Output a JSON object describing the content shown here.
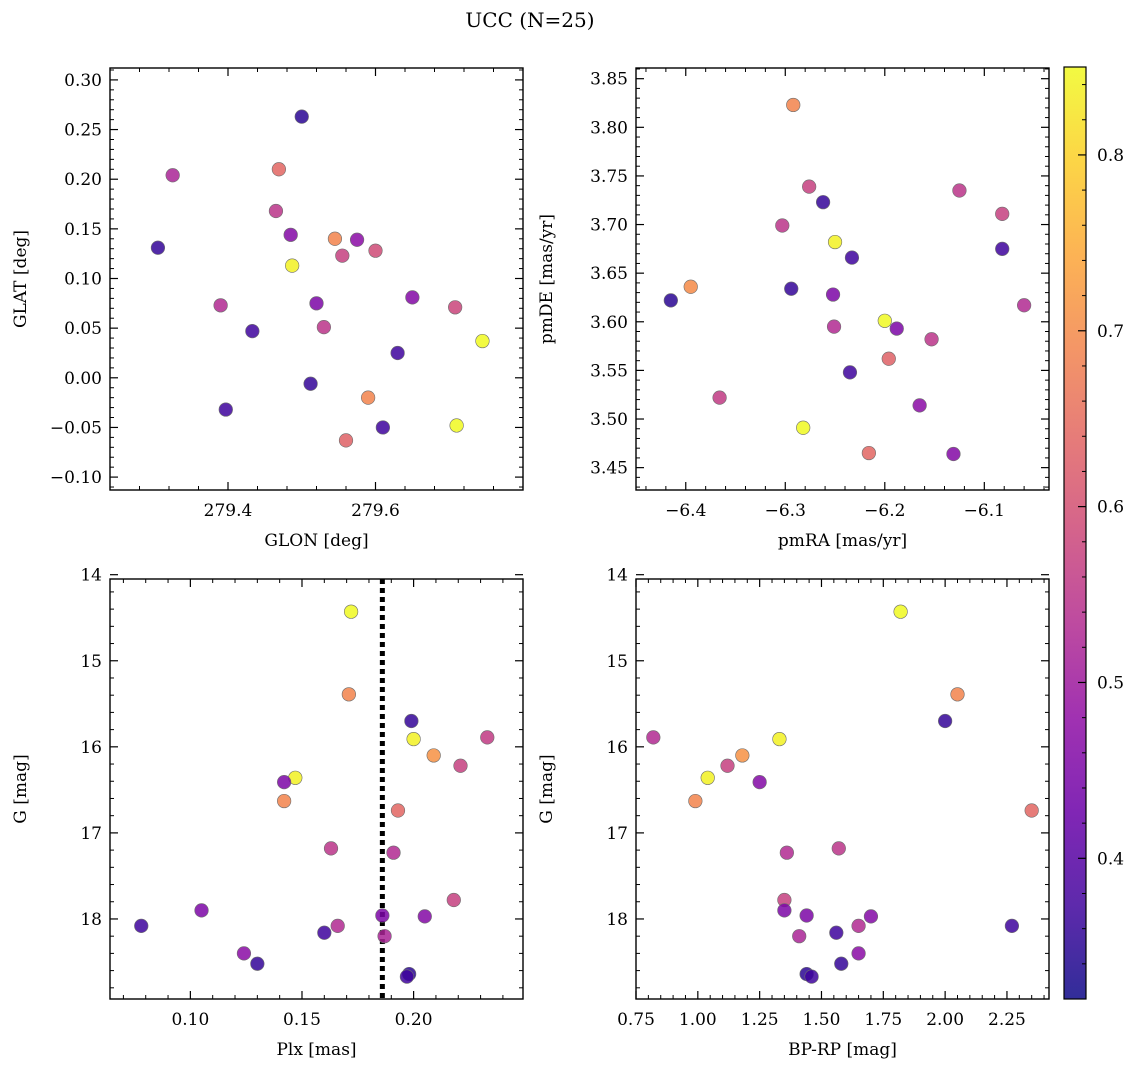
{
  "title": "UCC (N=25)",
  "colorbar": {
    "colormap": "plasma",
    "range": [
      0.32,
      0.85
    ],
    "ticks": [
      0.4,
      0.5,
      0.6,
      0.7,
      0.8
    ],
    "tick_labels": [
      "0.4",
      "0.5",
      "0.6",
      "0.7",
      "0.8"
    ]
  },
  "chart_data": [
    {
      "type": "scatter",
      "name": "sky",
      "xlabel": "GLON [deg]",
      "ylabel": "GLAT [deg]",
      "xlim": [
        279.24,
        279.8
      ],
      "ylim": [
        -0.113,
        0.312
      ],
      "xticks": [
        279.4,
        279.6
      ],
      "xtick_labels": [
        "279.4",
        "279.6"
      ],
      "yticks": [
        -0.1,
        -0.05,
        0.0,
        0.05,
        0.1,
        0.15,
        0.2,
        0.25,
        0.3
      ],
      "ytick_labels": [
        "−0.10",
        "−0.05",
        "0.00",
        "0.05",
        "0.10",
        "0.15",
        "0.20",
        "0.25",
        "0.30"
      ],
      "points": [
        {
          "x": 279.5,
          "y": 0.263,
          "c": 0.35
        },
        {
          "x": 279.325,
          "y": 0.204,
          "c": 0.52
        },
        {
          "x": 279.469,
          "y": 0.21,
          "c": 0.64
        },
        {
          "x": 279.465,
          "y": 0.168,
          "c": 0.55
        },
        {
          "x": 279.485,
          "y": 0.144,
          "c": 0.46
        },
        {
          "x": 279.305,
          "y": 0.131,
          "c": 0.36
        },
        {
          "x": 279.545,
          "y": 0.14,
          "c": 0.69
        },
        {
          "x": 279.575,
          "y": 0.139,
          "c": 0.47
        },
        {
          "x": 279.555,
          "y": 0.123,
          "c": 0.57
        },
        {
          "x": 279.6,
          "y": 0.128,
          "c": 0.59
        },
        {
          "x": 279.487,
          "y": 0.113,
          "c": 0.84
        },
        {
          "x": 279.39,
          "y": 0.073,
          "c": 0.53
        },
        {
          "x": 279.52,
          "y": 0.075,
          "c": 0.45
        },
        {
          "x": 279.65,
          "y": 0.081,
          "c": 0.46
        },
        {
          "x": 279.708,
          "y": 0.071,
          "c": 0.58
        },
        {
          "x": 279.433,
          "y": 0.047,
          "c": 0.37
        },
        {
          "x": 279.53,
          "y": 0.051,
          "c": 0.55
        },
        {
          "x": 279.63,
          "y": 0.025,
          "c": 0.37
        },
        {
          "x": 279.745,
          "y": 0.037,
          "c": 0.85
        },
        {
          "x": 279.512,
          "y": -0.006,
          "c": 0.36
        },
        {
          "x": 279.59,
          "y": -0.02,
          "c": 0.69
        },
        {
          "x": 279.397,
          "y": -0.032,
          "c": 0.37
        },
        {
          "x": 279.61,
          "y": -0.05,
          "c": 0.37
        },
        {
          "x": 279.71,
          "y": -0.048,
          "c": 0.85
        },
        {
          "x": 279.56,
          "y": -0.063,
          "c": 0.63
        }
      ]
    },
    {
      "type": "scatter",
      "name": "proper-motion",
      "xlabel": "pmRA [mas/yr]",
      "ylabel": "pmDE [mas/yr]",
      "xlim": [
        -6.45,
        -6.035
      ],
      "ylim": [
        3.427,
        3.861
      ],
      "xticks": [
        -6.4,
        -6.3,
        -6.2,
        -6.1
      ],
      "xtick_labels": [
        "−6.4",
        "−6.3",
        "−6.2",
        "−6.1"
      ],
      "yticks": [
        3.45,
        3.5,
        3.55,
        3.6,
        3.65,
        3.7,
        3.75,
        3.8,
        3.85
      ],
      "ytick_labels": [
        "3.45",
        "3.50",
        "3.55",
        "3.60",
        "3.65",
        "3.70",
        "3.75",
        "3.80",
        "3.85"
      ],
      "points": [
        {
          "x": -6.292,
          "y": 3.823,
          "c": 0.69
        },
        {
          "x": -6.276,
          "y": 3.739,
          "c": 0.57
        },
        {
          "x": -6.262,
          "y": 3.723,
          "c": 0.36
        },
        {
          "x": -6.303,
          "y": 3.699,
          "c": 0.55
        },
        {
          "x": -6.125,
          "y": 3.735,
          "c": 0.55
        },
        {
          "x": -6.082,
          "y": 3.711,
          "c": 0.57
        },
        {
          "x": -6.082,
          "y": 3.675,
          "c": 0.37
        },
        {
          "x": -6.25,
          "y": 3.682,
          "c": 0.84
        },
        {
          "x": -6.233,
          "y": 3.666,
          "c": 0.37
        },
        {
          "x": -6.395,
          "y": 3.636,
          "c": 0.7
        },
        {
          "x": -6.294,
          "y": 3.634,
          "c": 0.36
        },
        {
          "x": -6.415,
          "y": 3.622,
          "c": 0.35
        },
        {
          "x": -6.252,
          "y": 3.628,
          "c": 0.45
        },
        {
          "x": -6.06,
          "y": 3.617,
          "c": 0.53
        },
        {
          "x": -6.2,
          "y": 3.601,
          "c": 0.85
        },
        {
          "x": -6.251,
          "y": 3.595,
          "c": 0.53
        },
        {
          "x": -6.188,
          "y": 3.593,
          "c": 0.45
        },
        {
          "x": -6.153,
          "y": 3.582,
          "c": 0.55
        },
        {
          "x": -6.196,
          "y": 3.562,
          "c": 0.63
        },
        {
          "x": -6.235,
          "y": 3.548,
          "c": 0.37
        },
        {
          "x": -6.366,
          "y": 3.522,
          "c": 0.56
        },
        {
          "x": -6.165,
          "y": 3.514,
          "c": 0.47
        },
        {
          "x": -6.282,
          "y": 3.491,
          "c": 0.85
        },
        {
          "x": -6.216,
          "y": 3.465,
          "c": 0.64
        },
        {
          "x": -6.131,
          "y": 3.464,
          "c": 0.46
        }
      ]
    },
    {
      "type": "scatter",
      "name": "parallax-magnitude",
      "xlabel": "Plx [mas]",
      "ylabel": "G [mag]",
      "xlim": [
        0.064,
        0.249
      ],
      "ylim": [
        18.93,
        14.05
      ],
      "y_inverted": true,
      "xticks": [
        0.1,
        0.15,
        0.2
      ],
      "xtick_labels": [
        "0.10",
        "0.15",
        "0.20"
      ],
      "yticks": [
        14,
        15,
        16,
        17,
        18
      ],
      "ytick_labels": [
        "14",
        "15",
        "16",
        "17",
        "18"
      ],
      "vline": {
        "x": 0.186,
        "style": "dotted"
      },
      "points": [
        {
          "x": 0.172,
          "y": 14.43,
          "c": 0.85
        },
        {
          "x": 0.171,
          "y": 15.39,
          "c": 0.69
        },
        {
          "x": 0.199,
          "y": 15.7,
          "c": 0.36
        },
        {
          "x": 0.2,
          "y": 15.91,
          "c": 0.84
        },
        {
          "x": 0.233,
          "y": 15.89,
          "c": 0.56
        },
        {
          "x": 0.209,
          "y": 16.1,
          "c": 0.71
        },
        {
          "x": 0.221,
          "y": 16.22,
          "c": 0.57
        },
        {
          "x": 0.147,
          "y": 16.36,
          "c": 0.84
        },
        {
          "x": 0.142,
          "y": 16.41,
          "c": 0.45
        },
        {
          "x": 0.142,
          "y": 16.63,
          "c": 0.69
        },
        {
          "x": 0.193,
          "y": 16.74,
          "c": 0.64
        },
        {
          "x": 0.163,
          "y": 17.18,
          "c": 0.55
        },
        {
          "x": 0.191,
          "y": 17.23,
          "c": 0.53
        },
        {
          "x": 0.218,
          "y": 17.78,
          "c": 0.57
        },
        {
          "x": 0.105,
          "y": 17.9,
          "c": 0.45
        },
        {
          "x": 0.186,
          "y": 17.96,
          "c": 0.45
        },
        {
          "x": 0.205,
          "y": 17.97,
          "c": 0.46
        },
        {
          "x": 0.078,
          "y": 18.08,
          "c": 0.37
        },
        {
          "x": 0.166,
          "y": 18.08,
          "c": 0.53
        },
        {
          "x": 0.16,
          "y": 18.16,
          "c": 0.37
        },
        {
          "x": 0.187,
          "y": 18.2,
          "c": 0.52
        },
        {
          "x": 0.124,
          "y": 18.4,
          "c": 0.47
        },
        {
          "x": 0.13,
          "y": 18.52,
          "c": 0.36
        },
        {
          "x": 0.198,
          "y": 18.64,
          "c": 0.35
        },
        {
          "x": 0.197,
          "y": 18.67,
          "c": 0.37
        }
      ]
    },
    {
      "type": "scatter",
      "name": "color-magnitude",
      "xlabel": "BP-RP [mag]",
      "ylabel": "G [mag]",
      "xlim": [
        0.75,
        2.42
      ],
      "ylim": [
        18.93,
        14.05
      ],
      "y_inverted": true,
      "xticks": [
        0.75,
        1.0,
        1.25,
        1.5,
        1.75,
        2.0,
        2.25
      ],
      "xtick_labels": [
        "0.75",
        "1.00",
        "1.25",
        "1.50",
        "1.75",
        "2.00",
        "2.25"
      ],
      "yticks": [
        14,
        15,
        16,
        17,
        18
      ],
      "ytick_labels": [
        "14",
        "15",
        "16",
        "17",
        "18"
      ],
      "points": [
        {
          "x": 1.82,
          "y": 14.43,
          "c": 0.85
        },
        {
          "x": 2.05,
          "y": 15.39,
          "c": 0.69
        },
        {
          "x": 2.0,
          "y": 15.7,
          "c": 0.36
        },
        {
          "x": 0.82,
          "y": 15.89,
          "c": 0.53
        },
        {
          "x": 1.33,
          "y": 15.91,
          "c": 0.84
        },
        {
          "x": 1.18,
          "y": 16.1,
          "c": 0.71
        },
        {
          "x": 1.12,
          "y": 16.22,
          "c": 0.57
        },
        {
          "x": 1.04,
          "y": 16.36,
          "c": 0.84
        },
        {
          "x": 1.25,
          "y": 16.41,
          "c": 0.46
        },
        {
          "x": 0.99,
          "y": 16.63,
          "c": 0.69
        },
        {
          "x": 2.35,
          "y": 16.74,
          "c": 0.64
        },
        {
          "x": 1.57,
          "y": 17.18,
          "c": 0.55
        },
        {
          "x": 1.36,
          "y": 17.23,
          "c": 0.53
        },
        {
          "x": 1.35,
          "y": 17.78,
          "c": 0.57
        },
        {
          "x": 1.35,
          "y": 17.9,
          "c": 0.45
        },
        {
          "x": 1.44,
          "y": 17.96,
          "c": 0.45
        },
        {
          "x": 1.7,
          "y": 17.97,
          "c": 0.46
        },
        {
          "x": 2.27,
          "y": 18.08,
          "c": 0.37
        },
        {
          "x": 1.65,
          "y": 18.08,
          "c": 0.53
        },
        {
          "x": 1.56,
          "y": 18.16,
          "c": 0.37
        },
        {
          "x": 1.41,
          "y": 18.2,
          "c": 0.52
        },
        {
          "x": 1.65,
          "y": 18.4,
          "c": 0.47
        },
        {
          "x": 1.58,
          "y": 18.52,
          "c": 0.36
        },
        {
          "x": 1.44,
          "y": 18.64,
          "c": 0.35
        },
        {
          "x": 1.46,
          "y": 18.67,
          "c": 0.37
        }
      ]
    }
  ]
}
